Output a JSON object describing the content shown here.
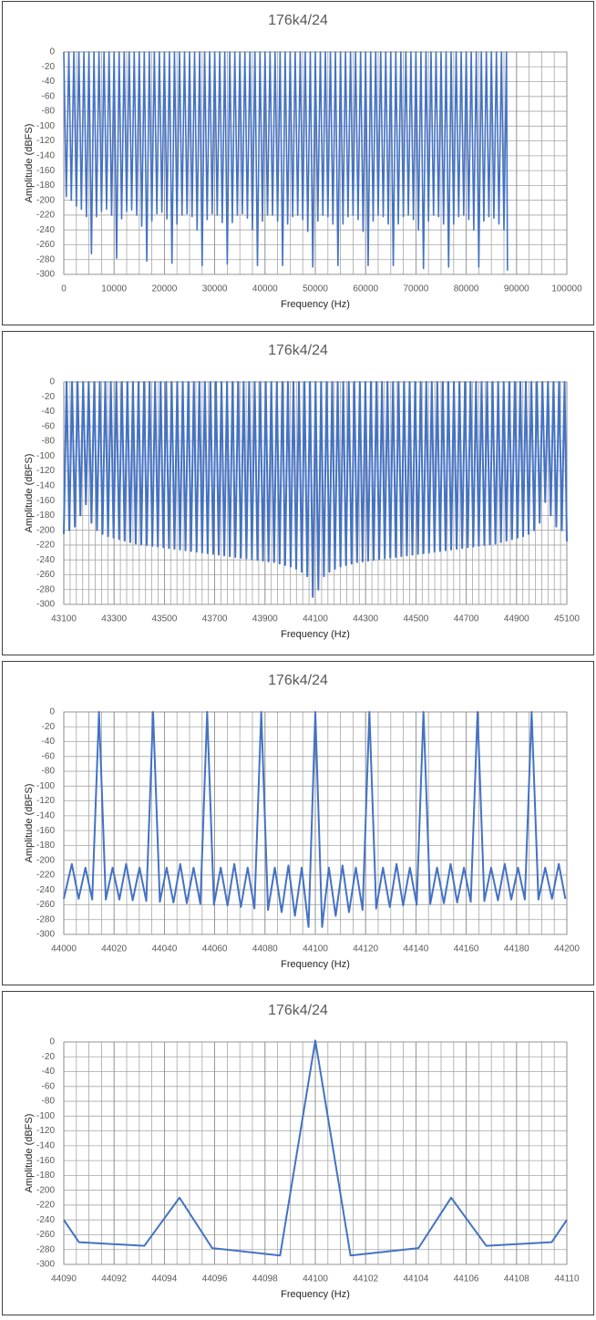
{
  "chart_data": [
    {
      "type": "line",
      "title": "176k4/24",
      "x_label": "Frequency (Hz)",
      "y_label": "Amplitude (dBFS)",
      "color": "#4472c4",
      "grid": true,
      "x_minor_grid": 2500,
      "xlim": [
        0,
        100000
      ],
      "xticks": [
        0,
        10000,
        20000,
        30000,
        40000,
        50000,
        60000,
        70000,
        80000,
        90000,
        100000
      ],
      "ylim": [
        -300,
        0
      ],
      "yticks": [
        -300,
        -280,
        -260,
        -240,
        -220,
        -200,
        -180,
        -160,
        -140,
        -120,
        -100,
        -80,
        -60,
        -40,
        -20,
        0
      ],
      "x": [
        0,
        500,
        1000,
        1500,
        2000,
        2500,
        3000,
        3500,
        4000,
        4500,
        5000,
        5500,
        6000,
        6500,
        7000,
        7500,
        8000,
        8500,
        9000,
        9500,
        10000,
        10500,
        11000,
        11500,
        12000,
        12500,
        13000,
        13500,
        14000,
        14500,
        15000,
        15500,
        16000,
        16500,
        17000,
        17500,
        18000,
        18500,
        19000,
        19500,
        20000,
        20500,
        21000,
        21500,
        22000,
        22500,
        23000,
        23500,
        24000,
        24500,
        25000,
        25500,
        26000,
        26500,
        27000,
        27500,
        28000,
        28500,
        29000,
        29500,
        30000,
        30500,
        31000,
        31500,
        32000,
        32500,
        33000,
        33500,
        34000,
        34500,
        35000,
        35500,
        36000,
        36500,
        37000,
        37500,
        38000,
        38500,
        39000,
        39500,
        40000,
        40500,
        41000,
        41500,
        42000,
        42500,
        43000,
        43500,
        44000,
        44500,
        45000,
        45500,
        46000,
        46500,
        47000,
        47500,
        48000,
        48500,
        49000,
        49500,
        50000,
        50500,
        51000,
        51500,
        52000,
        52500,
        53000,
        53500,
        54000,
        54500,
        55000,
        55500,
        56000,
        56500,
        57000,
        57500,
        58000,
        58500,
        59000,
        59500,
        60000,
        60500,
        61000,
        61500,
        62000,
        62500,
        63000,
        63500,
        64000,
        64500,
        65000,
        65500,
        66000,
        66500,
        67000,
        67500,
        68000,
        68500,
        69000,
        69500,
        70000,
        70500,
        71000,
        71500,
        72000,
        72500,
        73000,
        73500,
        74000,
        74500,
        75000,
        75500,
        76000,
        76500,
        77000,
        77500,
        78000,
        78500,
        79000,
        79500,
        80000,
        80500,
        81000,
        81500,
        82000,
        82500,
        83000,
        83500,
        84000,
        84500,
        85000,
        85500,
        86000,
        86500,
        87000,
        87500,
        88000,
        88200
      ],
      "values": [
        0,
        -195,
        0,
        -200,
        0,
        -208,
        0,
        -212,
        0,
        -222,
        0,
        -272,
        0,
        -222,
        0,
        -215,
        0,
        -212,
        0,
        -220,
        0,
        -278,
        0,
        -225,
        0,
        -215,
        0,
        -213,
        0,
        -220,
        0,
        -235,
        0,
        -282,
        0,
        -228,
        0,
        -218,
        0,
        -216,
        0,
        -225,
        0,
        -285,
        0,
        -232,
        0,
        -220,
        0,
        -218,
        0,
        -222,
        0,
        -240,
        0,
        -288,
        0,
        -226,
        0,
        -218,
        0,
        -220,
        0,
        -230,
        0,
        -286,
        0,
        -230,
        0,
        -220,
        0,
        -218,
        0,
        -224,
        0,
        -240,
        0,
        -288,
        0,
        -228,
        0,
        -220,
        0,
        -220,
        0,
        -228,
        0,
        -288,
        0,
        -232,
        0,
        -222,
        0,
        -220,
        0,
        -226,
        0,
        -242,
        0,
        -290,
        0,
        -228,
        0,
        -220,
        0,
        -222,
        0,
        -232,
        0,
        -288,
        0,
        -232,
        0,
        -222,
        0,
        -220,
        0,
        -226,
        0,
        -242,
        0,
        -288,
        0,
        -228,
        0,
        -220,
        0,
        -222,
        0,
        -232,
        0,
        -288,
        0,
        -232,
        0,
        -222,
        0,
        -220,
        0,
        -226,
        0,
        -240,
        0,
        -292,
        0,
        -228,
        0,
        -220,
        0,
        -222,
        0,
        -232,
        0,
        -290,
        0,
        -232,
        0,
        -222,
        0,
        -220,
        0,
        -226,
        0,
        -240,
        0,
        -290,
        0,
        -228,
        0,
        -222,
        0,
        -224,
        0,
        -232,
        0,
        -240,
        0,
        -295
      ]
    },
    {
      "type": "line",
      "title": "176k4/24",
      "x_label": "Frequency (Hz)",
      "y_label": "Amplitude (dBFS)",
      "color": "#4472c4",
      "grid": true,
      "x_minor_grid": 25,
      "xlim": [
        43100,
        45100
      ],
      "xticks": [
        43100,
        43300,
        43500,
        43700,
        43900,
        44100,
        44300,
        44500,
        44700,
        44900,
        45100
      ],
      "ylim": [
        -300,
        0
      ],
      "yticks": [
        -300,
        -280,
        -260,
        -240,
        -220,
        -200,
        -180,
        -160,
        -140,
        -120,
        -100,
        -80,
        -60,
        -40,
        -20,
        0
      ],
      "x": [
        43100,
        43111,
        43122,
        43133,
        43144,
        43155,
        43166,
        43177,
        43188,
        43199,
        43210,
        43221,
        43232,
        43243,
        43254,
        43265,
        43276,
        43287,
        43298,
        43309,
        43320,
        43331,
        43342,
        43353,
        43364,
        43375,
        43386,
        43397,
        43408,
        43419,
        43430,
        43441,
        43452,
        43463,
        43474,
        43485,
        43496,
        43507,
        43518,
        43529,
        43540,
        43551,
        43562,
        43573,
        43584,
        43595,
        43606,
        43617,
        43628,
        43639,
        43650,
        43661,
        43672,
        43683,
        43694,
        43705,
        43716,
        43727,
        43738,
        43749,
        43760,
        43771,
        43782,
        43793,
        43804,
        43815,
        43826,
        43837,
        43848,
        43859,
        43870,
        43881,
        43892,
        43903,
        43914,
        43925,
        43936,
        43947,
        43958,
        43969,
        43980,
        43991,
        44002,
        44013,
        44024,
        44035,
        44046,
        44057,
        44068,
        44079,
        44090,
        44101,
        44112,
        44123,
        44134,
        44145,
        44156,
        44167,
        44178,
        44189,
        44200,
        44211,
        44222,
        44233,
        44244,
        44255,
        44266,
        44277,
        44288,
        44299,
        44310,
        44321,
        44332,
        44343,
        44354,
        44365,
        44376,
        44387,
        44398,
        44409,
        44420,
        44431,
        44442,
        44453,
        44464,
        44475,
        44486,
        44497,
        44508,
        44519,
        44530,
        44541,
        44552,
        44563,
        44574,
        44585,
        44596,
        44607,
        44618,
        44629,
        44640,
        44651,
        44662,
        44673,
        44684,
        44695,
        44706,
        44717,
        44728,
        44739,
        44750,
        44761,
        44772,
        44783,
        44794,
        44805,
        44816,
        44827,
        44838,
        44849,
        44860,
        44871,
        44882,
        44893,
        44904,
        44915,
        44926,
        44937,
        44948,
        44959,
        44970,
        44981,
        44992,
        45003,
        45014,
        45025,
        45036,
        45047,
        45058,
        45069,
        45080,
        45091,
        45100
      ],
      "values": [
        -205,
        0,
        -200,
        0,
        -195,
        0,
        -180,
        0,
        -165,
        0,
        -190,
        0,
        -200,
        0,
        -205,
        0,
        -208,
        0,
        -210,
        0,
        -212,
        0,
        -214,
        0,
        -216,
        0,
        -218,
        0,
        -219,
        0,
        -220,
        0,
        -221,
        0,
        -222,
        0,
        -223,
        0,
        -224,
        0,
        -225,
        0,
        -226,
        0,
        -227,
        0,
        -228,
        0,
        -229,
        0,
        -230,
        0,
        -231,
        0,
        -232,
        0,
        -233,
        0,
        -234,
        0,
        -235,
        0,
        -236,
        0,
        -237,
        0,
        -238,
        0,
        -239,
        0,
        -240,
        0,
        -241,
        0,
        -242,
        0,
        -243,
        0,
        -245,
        0,
        -247,
        0,
        -249,
        0,
        -252,
        0,
        -256,
        0,
        -262,
        0,
        -290,
        0,
        -280,
        0,
        -262,
        0,
        -256,
        0,
        -252,
        0,
        -249,
        0,
        -247,
        0,
        -245,
        0,
        -243,
        0,
        -242,
        0,
        -241,
        0,
        -240,
        0,
        -239,
        0,
        -238,
        0,
        -237,
        0,
        -236,
        0,
        -235,
        0,
        -234,
        0,
        -233,
        0,
        -232,
        0,
        -231,
        0,
        -230,
        0,
        -229,
        0,
        -228,
        0,
        -227,
        0,
        -226,
        0,
        -225,
        0,
        -224,
        0,
        -223,
        0,
        -222,
        0,
        -221,
        0,
        -220,
        0,
        -219,
        0,
        -218,
        0,
        -216,
        0,
        -214,
        0,
        -212,
        0,
        -210,
        0,
        -208,
        0,
        -205,
        0,
        -200,
        0,
        -190,
        0,
        -162,
        0,
        -180,
        0,
        -195,
        0,
        -200,
        0,
        -215
      ]
    },
    {
      "type": "line",
      "title": "176k4/24",
      "x_label": "Frequency (Hz)",
      "y_label": "Amplitude (dBFS)",
      "color": "#4472c4",
      "grid": true,
      "x_minor_grid": 5,
      "xlim": [
        44000,
        44200
      ],
      "xticks": [
        44000,
        44020,
        44040,
        44060,
        44080,
        44100,
        44120,
        44140,
        44160,
        44180,
        44200
      ],
      "ylim": [
        -300,
        0
      ],
      "yticks": [
        -300,
        -280,
        -260,
        -240,
        -220,
        -200,
        -180,
        -160,
        -140,
        -120,
        -100,
        -80,
        -60,
        -40,
        -20,
        0
      ],
      "x": [
        44000,
        44003.2,
        44005.9,
        44008.6,
        44011.3,
        44014,
        44016.7,
        44019.4,
        44022.1,
        44024.8,
        44027.4,
        44030.1,
        44032.8,
        44035.5,
        44038.2,
        44040.9,
        44043.6,
        44046.3,
        44048.9,
        44051.6,
        44054.3,
        44057,
        44059.7,
        44062.4,
        44065.1,
        44067.8,
        44070.4,
        44073.1,
        44075.8,
        44078.5,
        44081.2,
        44083.9,
        44086.6,
        44089.3,
        44091.9,
        44094.6,
        44097.3,
        44100,
        44102.7,
        44105.4,
        44108.1,
        44110.8,
        44113.4,
        44116.1,
        44118.8,
        44121.5,
        44124.2,
        44126.9,
        44129.6,
        44132.3,
        44134.9,
        44137.6,
        44140.3,
        44143,
        44145.7,
        44148.4,
        44151.1,
        44153.8,
        44156.4,
        44159.1,
        44161.8,
        44164.5,
        44167.2,
        44169.9,
        44172.6,
        44175.3,
        44177.9,
        44180.6,
        44183.3,
        44186,
        44188.7,
        44191.4,
        44194.1,
        44196.8,
        44199.4
      ],
      "values": [
        -252,
        -205,
        -252,
        -210,
        -253,
        0,
        -253,
        -210,
        -253,
        -205,
        -254,
        -210,
        -255,
        0,
        -256,
        -210,
        -257,
        -205,
        -258,
        -210,
        -259,
        0,
        -260,
        -210,
        -261,
        -205,
        -263,
        -210,
        -265,
        0,
        -267,
        -210,
        -270,
        -207,
        -275,
        -210,
        -290,
        0,
        -290,
        -210,
        -275,
        -207,
        -270,
        -210,
        -267,
        0,
        -265,
        -210,
        -263,
        -205,
        -261,
        -210,
        -260,
        0,
        -259,
        -210,
        -258,
        -205,
        -257,
        -210,
        -256,
        0,
        -255,
        -210,
        -254,
        -205,
        -253,
        -210,
        -253,
        0,
        -253,
        -210,
        -252,
        -205,
        -252
      ]
    },
    {
      "type": "line",
      "title": "176k4/24",
      "x_label": "Frequency (Hz)",
      "y_label": "Amplitude (dBFS)",
      "color": "#4472c4",
      "grid": true,
      "x_minor_grid": 0.5,
      "xlim": [
        44090,
        44110
      ],
      "xticks": [
        44090,
        44092,
        44094,
        44096,
        44098,
        44100,
        44102,
        44104,
        44106,
        44108,
        44110
      ],
      "ylim": [
        -300,
        0
      ],
      "yticks": [
        -300,
        -280,
        -260,
        -240,
        -220,
        -200,
        -180,
        -160,
        -140,
        -120,
        -100,
        -80,
        -60,
        -40,
        -20,
        0
      ],
      "x": [
        44090,
        44090.6,
        44093.2,
        44094.6,
        44095.9,
        44098.6,
        44100,
        44101.4,
        44104.1,
        44105.4,
        44106.8,
        44109.4,
        44110
      ],
      "values": [
        -240,
        -270,
        -275,
        -210,
        -278,
        -288,
        2,
        -288,
        -278,
        -210,
        -275,
        -270,
        -240
      ]
    }
  ]
}
